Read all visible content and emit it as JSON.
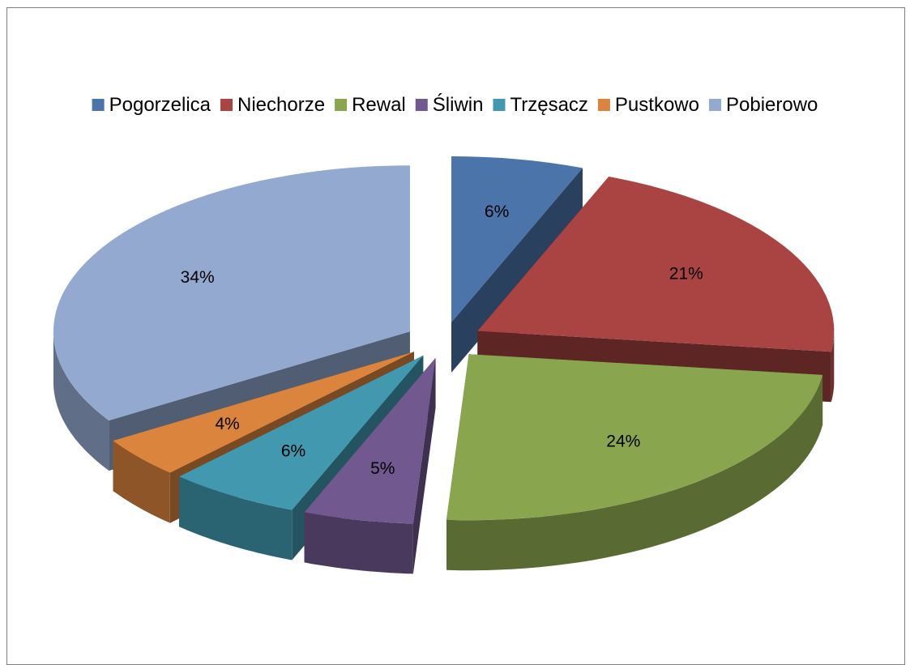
{
  "chart_data": {
    "type": "pie",
    "style": "3d-exploded",
    "categories": [
      "Pogorzelica",
      "Niechorze",
      "Rewal",
      "Śliwin",
      "Trzęsacz",
      "Pustkowo",
      "Pobierowo"
    ],
    "values": [
      6,
      21,
      24,
      5,
      6,
      4,
      34
    ],
    "labels": [
      "6%",
      "21%",
      "24%",
      "5%",
      "6%",
      "4%",
      "34%"
    ],
    "colors": [
      "#4a74aa",
      "#a94442",
      "#89a54e",
      "#71588f",
      "#4198af",
      "#db843d",
      "#93a9cf"
    ],
    "legend_position": "top",
    "title": ""
  }
}
